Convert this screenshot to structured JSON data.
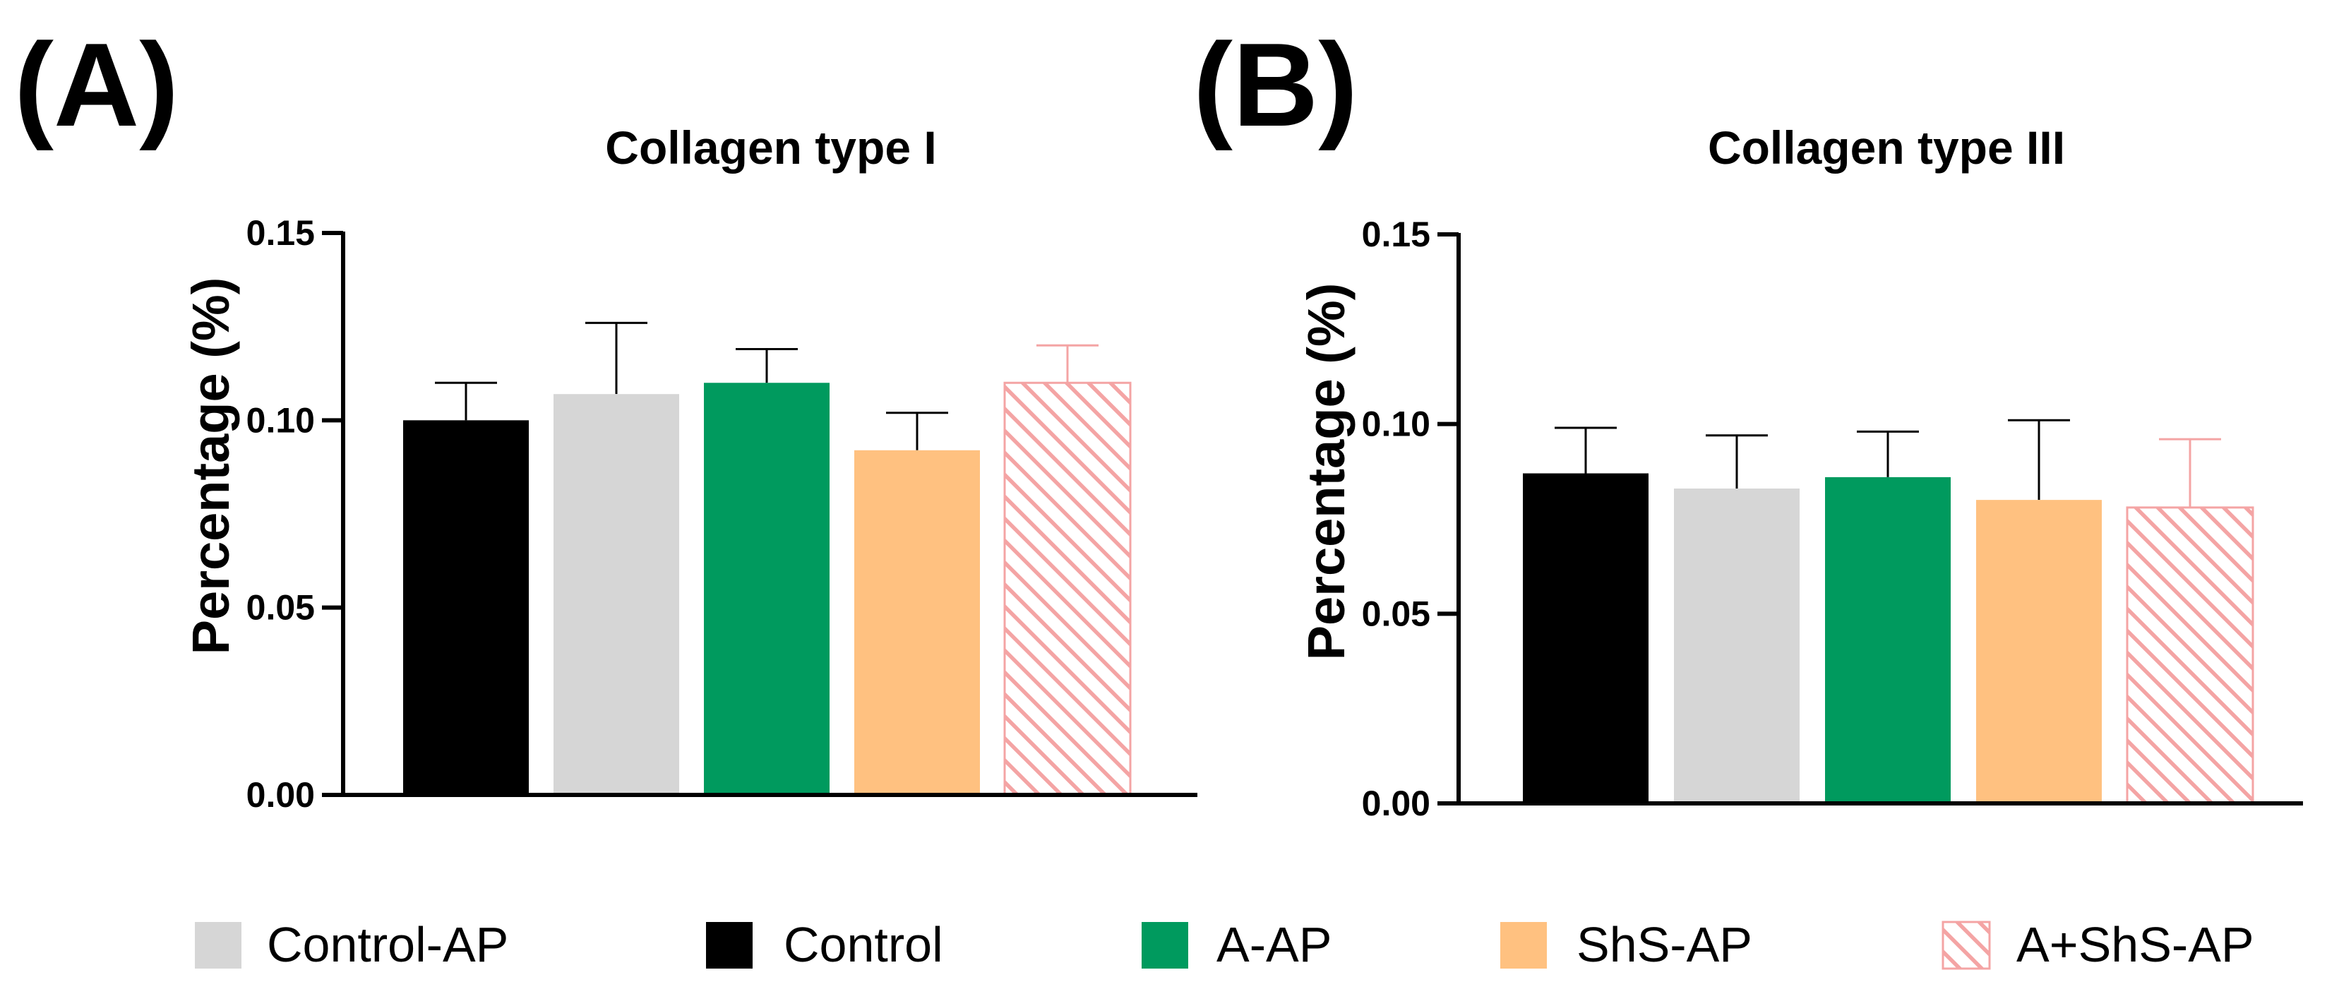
{
  "figure": {
    "panels": [
      {
        "letter": "(A)",
        "title": "Collagen type I"
      },
      {
        "letter": "(B)",
        "title": "Collagen type  III"
      }
    ]
  },
  "legend": [
    {
      "label": "Control-AP",
      "color": "#d6d6d6",
      "pattern": "solid"
    },
    {
      "label": "Control",
      "color": "#000000",
      "pattern": "solid"
    },
    {
      "label": "A-AP",
      "color": "#009a5e",
      "pattern": "solid"
    },
    {
      "label": "ShS-AP",
      "color": "#ffc180",
      "pattern": "solid"
    },
    {
      "label": "A+ShS-AP",
      "color": "#f4a4a4",
      "pattern": "hatched"
    }
  ],
  "chart_data": [
    {
      "type": "bar",
      "title": "Collagen type I",
      "xlabel": "",
      "ylabel": "Percentage (%)",
      "ylim": [
        0,
        0.15
      ],
      "yticks": [
        "0.00",
        "0.05",
        "0.10",
        "0.15"
      ],
      "categories": [
        "Control",
        "Control-AP",
        "A-AP",
        "ShS-AP",
        "A+ShS-AP"
      ],
      "values": [
        0.1,
        0.107,
        0.11,
        0.092,
        0.11
      ],
      "errors": [
        0.01,
        0.019,
        0.009,
        0.01,
        0.01
      ]
    },
    {
      "type": "bar",
      "title": "Collagen type  III",
      "xlabel": "",
      "ylabel": "Percentage (%)",
      "ylim": [
        0,
        0.15
      ],
      "yticks": [
        "0.00",
        "0.05",
        "0.10",
        "0.15"
      ],
      "categories": [
        "Control",
        "Control-AP",
        "A-AP",
        "ShS-AP",
        "A+ShS-AP"
      ],
      "values": [
        0.087,
        0.083,
        0.086,
        0.08,
        0.078
      ],
      "errors": [
        0.012,
        0.014,
        0.012,
        0.021,
        0.018
      ]
    }
  ]
}
